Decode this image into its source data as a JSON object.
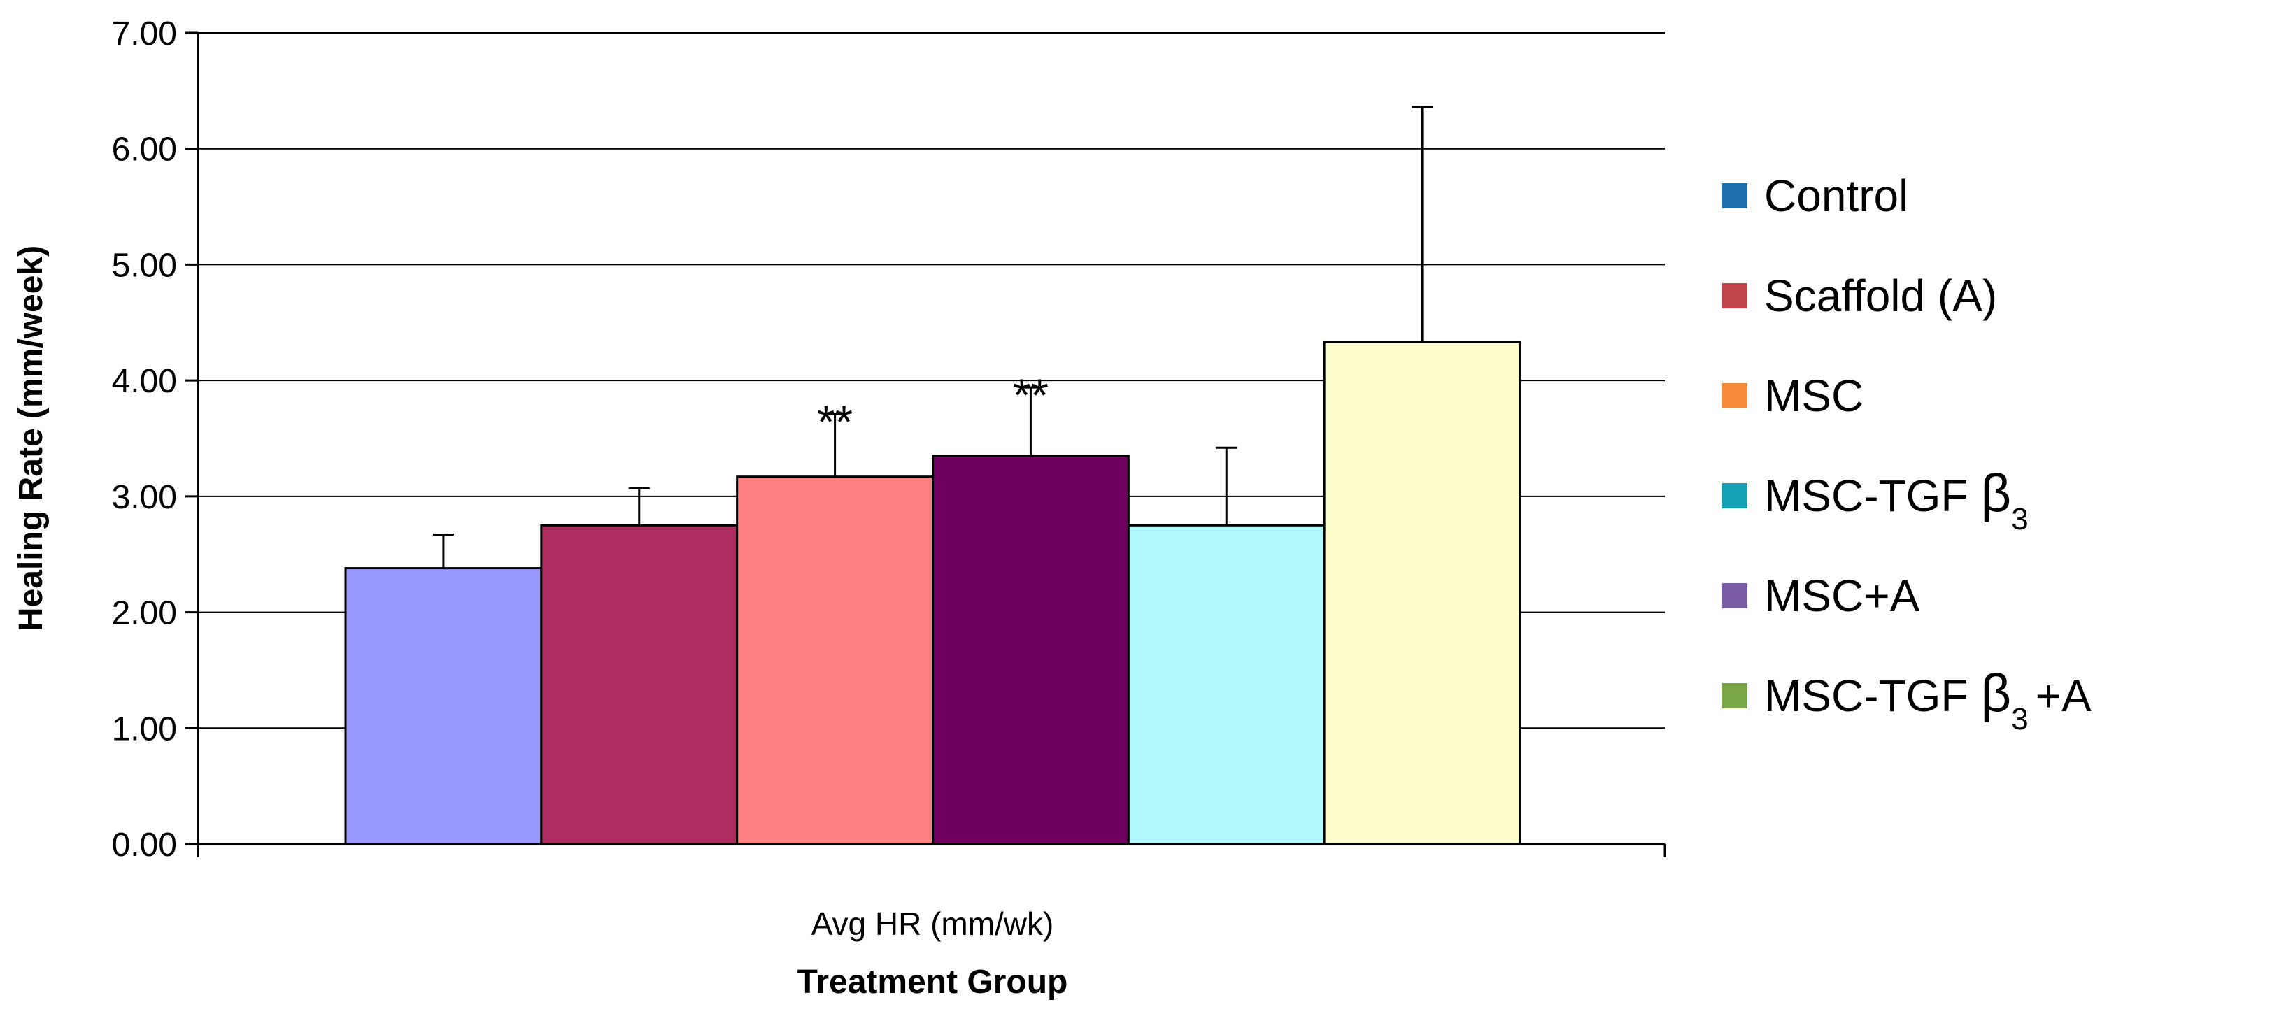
{
  "chart_data": {
    "type": "bar",
    "categories": [
      "Avg HR (mm/wk)"
    ],
    "series": [
      {
        "name": "Control",
        "legend_color": "#1F6FAE",
        "fill": "#9999FF",
        "value": 2.38,
        "error_plus": 0.29,
        "annotation": ""
      },
      {
        "name": "Scaffold (A)",
        "legend_color": "#C0454A",
        "fill": "#AE2D60",
        "value": 2.75,
        "error_plus": 0.32,
        "annotation": ""
      },
      {
        "name": "MSC",
        "legend_color": "#F58A3A",
        "fill": "#FF8080",
        "value": 3.17,
        "error_plus": 0.54,
        "annotation": "**"
      },
      {
        "name": "MSC-TGF",
        "name_sub": "β3",
        "legend_color": "#16A0B5",
        "fill": "#700060",
        "value": 3.35,
        "error_plus": 0.59,
        "annotation": "**"
      },
      {
        "name": "MSC+A",
        "legend_color": "#7B5BA6",
        "fill": "#B0F8FC",
        "value": 2.75,
        "error_plus": 0.67,
        "annotation": ""
      },
      {
        "name": "MSC-TGF",
        "name_sub": "β3",
        "name_suffix": "+A",
        "legend_color": "#79A745",
        "fill": "#FDFDCB",
        "value": 4.33,
        "error_plus": 2.03,
        "annotation": ""
      }
    ],
    "xlabel": "Treatment Group",
    "ylabel": "Healing Rate (mm/week)",
    "ylim": [
      0,
      7
    ],
    "yticks": [
      "0.00",
      "1.00",
      "2.00",
      "3.00",
      "4.00",
      "5.00",
      "6.00",
      "7.00"
    ],
    "grid": true,
    "legend_position": "right"
  }
}
